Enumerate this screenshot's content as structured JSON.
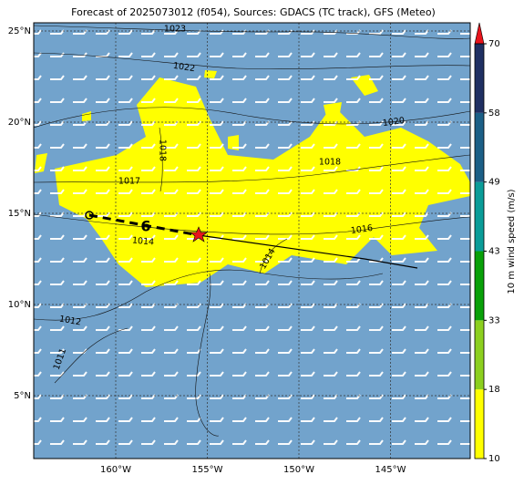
{
  "title": "Forecast of 2025073012 (f054), Sources: GDACS (TC track), GFS (Meteo)",
  "map": {
    "lat_labels": [
      "25°N",
      "20°N",
      "15°N",
      "10°N",
      "5°N"
    ],
    "lon_labels": [
      "160°W",
      "155°W",
      "150°W",
      "145°W"
    ],
    "isobar_labels": [
      "1023",
      "1022",
      "1020",
      "1018",
      "1018",
      "1017",
      "1016",
      "1014",
      "1014",
      "1012",
      "1011"
    ]
  },
  "colorbar": {
    "label": "10 m wind speed (m/s)",
    "ticks": [
      10,
      18,
      33,
      43,
      49,
      58,
      70
    ],
    "colors": [
      "#ffff00",
      "#8ccf1e",
      "#08a008",
      "#0a9c98",
      "#1b5f86",
      "#1f2f62"
    ],
    "extend_color": "#e8141c"
  }
}
